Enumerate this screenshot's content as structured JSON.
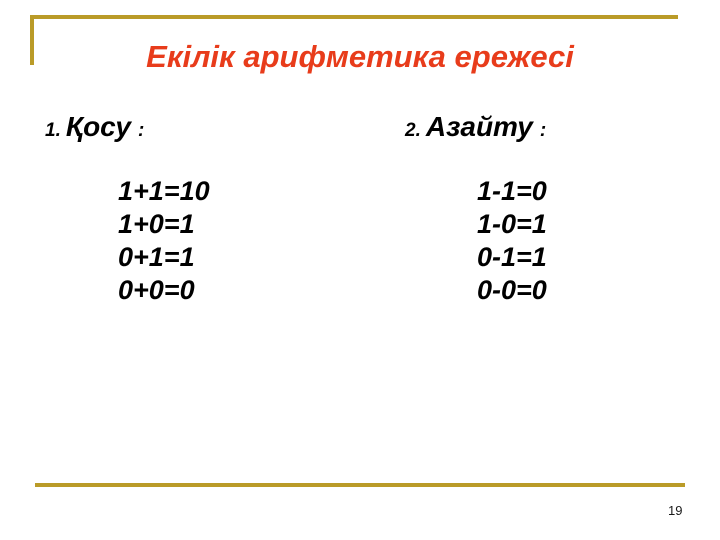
{
  "slide": {
    "title": "Екілік арифметика ережесі",
    "page_number": "19",
    "colors": {
      "accent_gold": "#BA9B28",
      "title_red": "#E83C1B",
      "text_black": "#000000"
    },
    "sections": [
      {
        "prefix": "1.",
        "heading": "Қосу",
        "colon": ":",
        "equations": [
          "1+1=10",
          "1+0=1",
          "0+1=1",
          "0+0=0"
        ]
      },
      {
        "prefix": "2.",
        "heading": "Азайту",
        "colon": ":",
        "equations": [
          "1-1=0",
          "1-0=1",
          "0-1=1",
          "0-0=0"
        ]
      }
    ]
  }
}
